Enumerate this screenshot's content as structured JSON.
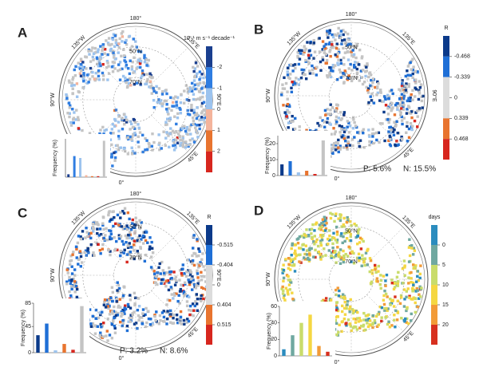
{
  "panels": [
    {
      "label": "A",
      "colorbar": {
        "title": "10⁻¹ m s⁻¹ decade⁻¹",
        "ticks": [
          "-2",
          "-1",
          "0",
          "1",
          "2"
        ],
        "colors": [
          "#1a3f8f",
          "#2f7de1",
          "#9cc3ee",
          "#f4b49c",
          "#e8742f",
          "#d7261e"
        ]
      },
      "map_labels": [
        "180°",
        "50°N",
        "70°N",
        "135°W",
        "90°W",
        "135°E",
        "90°E",
        "45°E",
        "0°"
      ],
      "histogram": {
        "ylabel": "Frequency (%)",
        "ylim": [
          0,
          40
        ],
        "values": [
          3,
          22,
          20,
          2,
          1,
          1,
          38
        ],
        "colors": [
          "#1a3f8f",
          "#2f7de1",
          "#9cc3ee",
          "#f4b49c",
          "#e8742f",
          "#d7261e",
          "#c4c4c4"
        ]
      }
    },
    {
      "label": "B",
      "colorbar": {
        "title": "R",
        "ticks": [
          "-0.468",
          "-0.339",
          "0",
          "0.339",
          "0.468"
        ],
        "colors": [
          "#0b3a8a",
          "#1f6fd6",
          "#dcdcdc",
          "#dcdcdc",
          "#e8742f",
          "#d7261e"
        ]
      },
      "map_labels": [
        "180°",
        "50°N",
        "70°N",
        "135°W",
        "90°W",
        "135°E",
        "90°E",
        "45°E",
        "0°"
      ],
      "histogram": {
        "ylabel": "Frequency (%)",
        "ylim": [
          0,
          25
        ],
        "yticks": [
          0,
          10,
          20
        ],
        "values": [
          7,
          9,
          2,
          3,
          1,
          22
        ],
        "colors": [
          "#0b3a8a",
          "#1f6fd6",
          "#9cc3ee",
          "#e8742f",
          "#d7261e",
          "#c4c4c4"
        ]
      },
      "stats": [
        "P: 5.6%",
        "N: 15.5%"
      ]
    },
    {
      "label": "C",
      "colorbar": {
        "title": "R",
        "ticks": [
          "-0.515",
          "-0.404",
          "0",
          "0.404",
          "0.515"
        ],
        "colors": [
          "#0b3a8a",
          "#1f6fd6",
          "#dcdcdc",
          "#dcdcdc",
          "#e8742f",
          "#d7261e"
        ]
      },
      "map_labels": [
        "180°",
        "50°N",
        "70°N",
        "135°W",
        "90°W",
        "135°E",
        "90°E",
        "45°E",
        "0°"
      ],
      "histogram": {
        "ylabel": "Frequency (%)",
        "ylim": [
          0,
          85
        ],
        "yticks": [
          0,
          45,
          85
        ],
        "values": [
          30,
          50,
          4,
          15,
          5,
          80
        ],
        "colors": [
          "#0b3a8a",
          "#1f6fd6",
          "#9cc3ee",
          "#e8742f",
          "#d7261e",
          "#c4c4c4"
        ]
      },
      "stats": [
        "P: 3.2%",
        "N: 8.6%"
      ]
    },
    {
      "label": "D",
      "colorbar": {
        "title": "days",
        "ticks": [
          "0",
          "5",
          "10",
          "15",
          "20"
        ],
        "colors": [
          "#2b8cbe",
          "#6fa8a0",
          "#c9dc6b",
          "#f5d742",
          "#f29b38",
          "#d7301f"
        ]
      },
      "map_labels": [
        "180°",
        "50°N",
        "70°N",
        "135°W",
        "90°W",
        "135°E",
        "90°E",
        "45°E",
        "0°"
      ],
      "histogram": {
        "ylabel": "Frequency (%)",
        "ylim": [
          0,
          60
        ],
        "yticks": [
          0,
          20,
          40,
          60
        ],
        "values": [
          8,
          25,
          40,
          50,
          12,
          5
        ],
        "colors": [
          "#2b8cbe",
          "#6fa8a0",
          "#c9dc6b",
          "#f5d742",
          "#f29b38",
          "#d7301f"
        ]
      }
    }
  ]
}
